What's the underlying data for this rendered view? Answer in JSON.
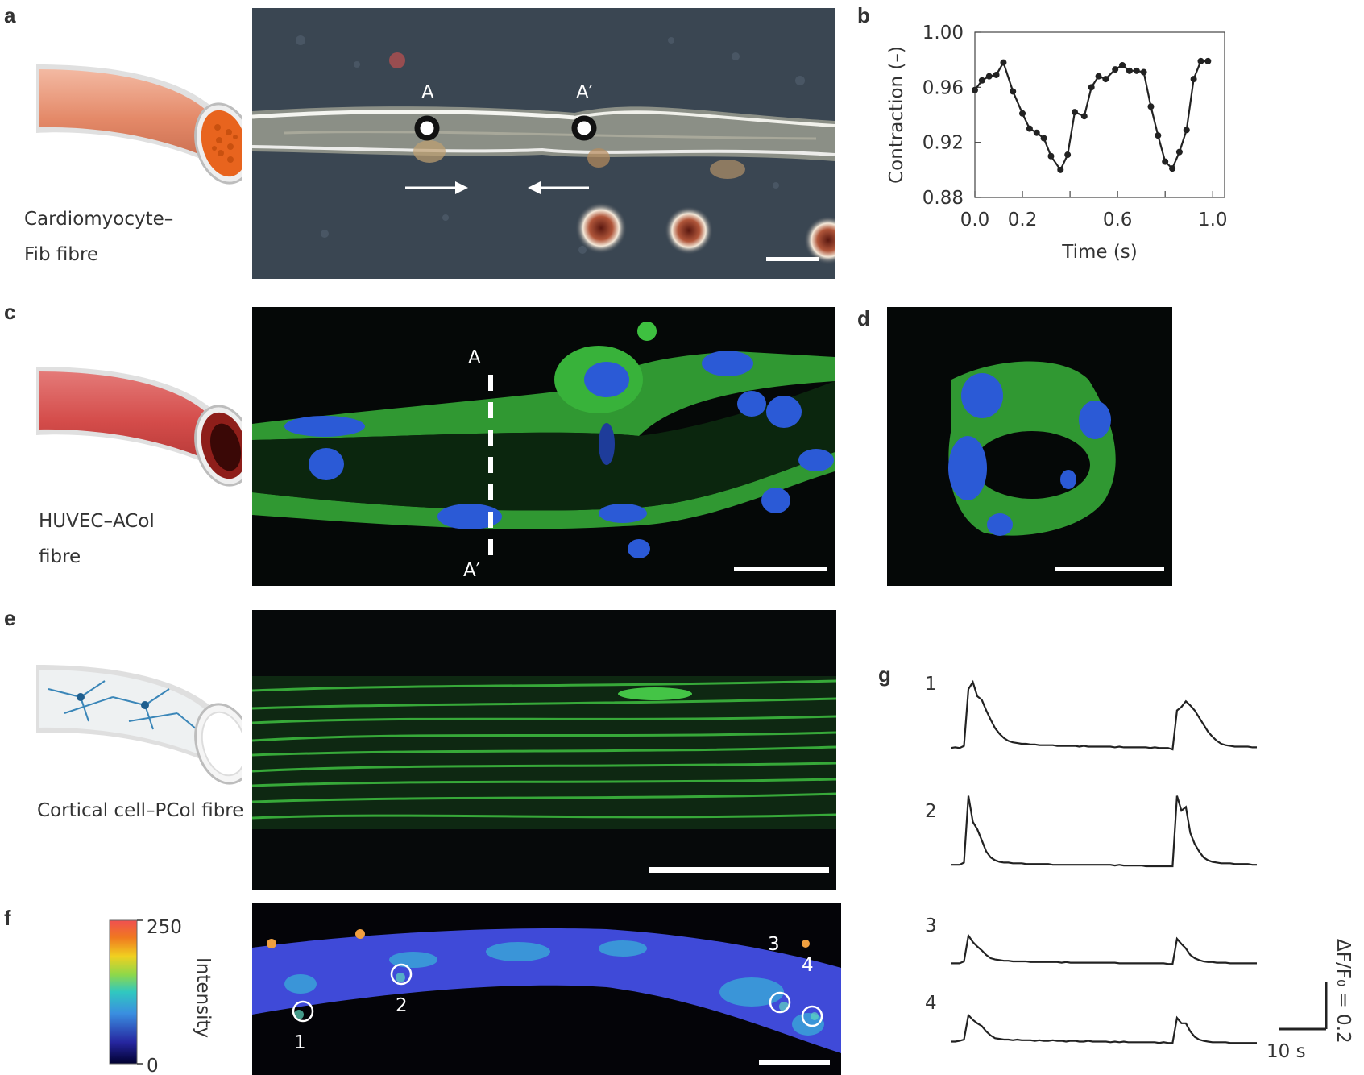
{
  "panels": {
    "a": {
      "label": "a",
      "caption": [
        "Cardiomyocyte–",
        "Fib fibre"
      ],
      "markers": [
        "A",
        "A′"
      ]
    },
    "b": {
      "label": "b"
    },
    "c": {
      "label": "c",
      "caption": [
        "HUVEC–ACol",
        "fibre"
      ],
      "markers": [
        "A",
        "A′"
      ]
    },
    "d": {
      "label": "d"
    },
    "e": {
      "label": "e",
      "caption": [
        "Cortical cell–PCol fibre"
      ]
    },
    "f": {
      "label": "f",
      "colorbar": {
        "max": "250",
        "min": "0",
        "title": "Intensity"
      },
      "rois": [
        "1",
        "2",
        "3",
        "4"
      ]
    },
    "g": {
      "label": "g",
      "traces": [
        "1",
        "2",
        "3",
        "4"
      ],
      "scalebar_time": "10 s",
      "scalebar_amp": "ΔF/F₀ = 0.2"
    }
  },
  "chart_data": [
    {
      "type": "line",
      "panel": "b",
      "xlabel": "Time (s)",
      "ylabel": "Contraction (–)",
      "xlim": [
        0.0,
        1.05
      ],
      "ylim": [
        0.88,
        1.0
      ],
      "xticks": [
        0.0,
        0.2,
        0.4,
        0.6,
        0.8,
        1.0
      ],
      "xtick_labels": [
        "0.0",
        "0.2",
        "",
        "0.6",
        "",
        "1.0"
      ],
      "yticks": [
        0.88,
        0.92,
        0.96,
        1.0
      ],
      "ytick_labels": [
        "0.88",
        "0.92",
        "0.96",
        "1.00"
      ],
      "grid": false,
      "series": [
        {
          "x": [
            0.0,
            0.03,
            0.06,
            0.09,
            0.12,
            0.16,
            0.2,
            0.23,
            0.26,
            0.29,
            0.32,
            0.36,
            0.39,
            0.42,
            0.46,
            0.49,
            0.52,
            0.55,
            0.59,
            0.62,
            0.65,
            0.68,
            0.71,
            0.74,
            0.77,
            0.8,
            0.83,
            0.86,
            0.89,
            0.92,
            0.95,
            0.98
          ],
          "y": [
            0.958,
            0.965,
            0.968,
            0.969,
            0.978,
            0.957,
            0.941,
            0.93,
            0.927,
            0.923,
            0.91,
            0.9,
            0.911,
            0.942,
            0.939,
            0.96,
            0.968,
            0.966,
            0.973,
            0.976,
            0.972,
            0.972,
            0.971,
            0.946,
            0.925,
            0.906,
            0.901,
            0.913,
            0.929,
            0.966,
            0.979,
            0.979
          ]
        }
      ]
    },
    {
      "type": "line",
      "panel": "g",
      "xlabel": "",
      "ylabel": "",
      "series": [
        {
          "name": "1",
          "x": [
            0,
            1,
            2,
            3,
            4,
            5,
            6,
            7,
            8,
            9,
            10,
            11,
            12,
            13,
            14,
            15,
            16,
            17,
            18,
            19,
            20,
            21,
            22,
            23,
            24,
            25,
            26,
            27,
            28,
            29,
            30,
            31,
            32,
            33,
            34,
            35,
            36,
            37,
            38,
            39,
            40,
            41,
            42,
            43,
            44,
            45,
            46,
            47,
            48,
            49,
            50,
            51,
            52,
            53,
            54,
            55,
            56,
            57,
            58,
            59,
            60,
            61,
            62,
            63,
            64,
            65,
            66,
            67,
            68,
            69
          ],
          "y": [
            0.02,
            0.03,
            0.02,
            0.05,
            0.85,
            0.95,
            0.75,
            0.7,
            0.55,
            0.42,
            0.3,
            0.22,
            0.16,
            0.12,
            0.1,
            0.09,
            0.08,
            0.08,
            0.07,
            0.07,
            0.06,
            0.06,
            0.06,
            0.06,
            0.05,
            0.05,
            0.05,
            0.05,
            0.05,
            0.04,
            0.05,
            0.04,
            0.04,
            0.04,
            0.04,
            0.04,
            0.04,
            0.03,
            0.04,
            0.03,
            0.03,
            0.03,
            0.03,
            0.03,
            0.03,
            0.02,
            0.03,
            0.02,
            0.02,
            0.02,
            0.0,
            0.55,
            0.6,
            0.68,
            0.62,
            0.55,
            0.45,
            0.35,
            0.25,
            0.18,
            0.12,
            0.08,
            0.06,
            0.05,
            0.04,
            0.04,
            0.04,
            0.04,
            0.03,
            0.03
          ]
        },
        {
          "name": "2",
          "x": [
            0,
            1,
            2,
            3,
            4,
            5,
            6,
            7,
            8,
            9,
            10,
            11,
            12,
            13,
            14,
            15,
            16,
            17,
            18,
            19,
            20,
            21,
            22,
            23,
            24,
            25,
            26,
            27,
            28,
            29,
            30,
            31,
            32,
            33,
            34,
            35,
            36,
            37,
            38,
            39,
            40,
            41,
            42,
            43,
            44,
            45,
            46,
            47,
            48,
            49,
            50,
            51,
            52,
            53,
            54,
            55,
            56,
            57,
            58,
            59,
            60,
            61,
            62,
            63,
            64,
            65,
            66,
            67,
            68,
            69
          ],
          "y": [
            0.02,
            0.02,
            0.02,
            0.05,
            0.95,
            0.6,
            0.5,
            0.35,
            0.2,
            0.12,
            0.08,
            0.06,
            0.05,
            0.05,
            0.04,
            0.04,
            0.04,
            0.03,
            0.03,
            0.03,
            0.03,
            0.03,
            0.03,
            0.02,
            0.02,
            0.02,
            0.02,
            0.02,
            0.02,
            0.02,
            0.02,
            0.02,
            0.02,
            0.02,
            0.02,
            0.02,
            0.02,
            0.01,
            0.02,
            0.01,
            0.01,
            0.01,
            0.01,
            0.01,
            0.0,
            0.0,
            0.0,
            0.0,
            0.0,
            0.0,
            0.0,
            0.95,
            0.75,
            0.8,
            0.45,
            0.3,
            0.2,
            0.12,
            0.08,
            0.06,
            0.05,
            0.04,
            0.04,
            0.04,
            0.03,
            0.03,
            0.03,
            0.03,
            0.02,
            0.02
          ]
        },
        {
          "name": "3",
          "x": [
            0,
            1,
            2,
            3,
            4,
            5,
            6,
            7,
            8,
            9,
            10,
            11,
            12,
            13,
            14,
            15,
            16,
            17,
            18,
            19,
            20,
            21,
            22,
            23,
            24,
            25,
            26,
            27,
            28,
            29,
            30,
            31,
            32,
            33,
            34,
            35,
            36,
            37,
            38,
            39,
            40,
            41,
            42,
            43,
            44,
            45,
            46,
            47,
            48,
            49,
            50,
            51,
            52,
            53,
            54,
            55,
            56,
            57,
            58,
            59,
            60,
            61,
            62,
            63,
            64,
            65,
            66,
            67,
            68,
            69
          ],
          "y": [
            0.02,
            0.02,
            0.02,
            0.05,
            0.45,
            0.35,
            0.28,
            0.22,
            0.15,
            0.1,
            0.08,
            0.07,
            0.06,
            0.06,
            0.05,
            0.05,
            0.05,
            0.05,
            0.04,
            0.04,
            0.04,
            0.04,
            0.04,
            0.04,
            0.04,
            0.03,
            0.04,
            0.03,
            0.03,
            0.03,
            0.03,
            0.03,
            0.03,
            0.03,
            0.03,
            0.03,
            0.03,
            0.03,
            0.02,
            0.02,
            0.02,
            0.02,
            0.02,
            0.02,
            0.02,
            0.02,
            0.02,
            0.02,
            0.02,
            0.01,
            0.01,
            0.4,
            0.32,
            0.25,
            0.15,
            0.1,
            0.07,
            0.05,
            0.04,
            0.04,
            0.03,
            0.03,
            0.03,
            0.02,
            0.02,
            0.02,
            0.02,
            0.02,
            0.02,
            0.02
          ]
        },
        {
          "name": "4",
          "x": [
            0,
            1,
            2,
            3,
            4,
            5,
            6,
            7,
            8,
            9,
            10,
            11,
            12,
            13,
            14,
            15,
            16,
            17,
            18,
            19,
            20,
            21,
            22,
            23,
            24,
            25,
            26,
            27,
            28,
            29,
            30,
            31,
            32,
            33,
            34,
            35,
            36,
            37,
            38,
            39,
            40,
            41,
            42,
            43,
            44,
            45,
            46,
            47,
            48,
            49,
            50,
            51,
            52,
            53,
            54,
            55,
            56,
            57,
            58,
            59,
            60,
            61,
            62,
            63,
            64,
            65,
            66,
            67,
            68,
            69
          ],
          "y": [
            0.03,
            0.03,
            0.04,
            0.06,
            0.42,
            0.35,
            0.3,
            0.26,
            0.18,
            0.12,
            0.08,
            0.07,
            0.06,
            0.06,
            0.05,
            0.06,
            0.05,
            0.05,
            0.05,
            0.04,
            0.05,
            0.04,
            0.04,
            0.05,
            0.04,
            0.04,
            0.03,
            0.04,
            0.04,
            0.03,
            0.03,
            0.04,
            0.03,
            0.03,
            0.03,
            0.03,
            0.02,
            0.03,
            0.02,
            0.03,
            0.02,
            0.02,
            0.02,
            0.02,
            0.02,
            0.02,
            0.02,
            0.01,
            0.02,
            0.01,
            0.01,
            0.38,
            0.3,
            0.3,
            0.18,
            0.1,
            0.06,
            0.04,
            0.03,
            0.02,
            0.02,
            0.02,
            0.02,
            0.01,
            0.01,
            0.01,
            0.01,
            0.01,
            0.01,
            0.01
          ]
        }
      ]
    }
  ]
}
